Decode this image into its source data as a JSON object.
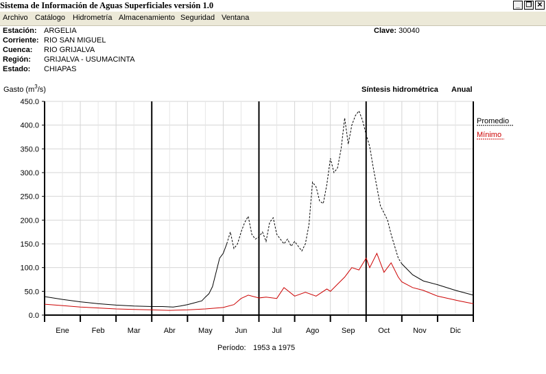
{
  "window": {
    "title": "Sistema de Información de Aguas Superficiales  versión 1.0",
    "buttons": [
      "_",
      "❐",
      "✕"
    ]
  },
  "menu": [
    "Archivo",
    "Catálogo",
    "Hidrometría",
    "Almacenamiento",
    "Seguridad",
    "Ventana"
  ],
  "station": {
    "estacion_label": "Estación:",
    "estacion": "ARGELIA",
    "corriente_label": "Corriente:",
    "corriente": "RIO SAN MIGUEL",
    "cuenca_label": "Cuenca:",
    "cuenca": "RIO GRIJALVA",
    "region_label": "Región:",
    "region": "GRIJALVA - USUMACINTA",
    "estado_label": "Estado:",
    "estado": "CHIAPAS",
    "clave_label": "Clave:",
    "clave": "30040"
  },
  "chart_data": {
    "type": "line",
    "title": "Síntesis hidrométrica",
    "subtitle": "Anual",
    "ylabel_prefix": "Gasto (m",
    "ylabel_sup": "3",
    "ylabel_suffix": "/s)",
    "ylim": [
      0,
      450
    ],
    "yticks": [
      "0.0",
      "50.0",
      "100.0",
      "150.0",
      "200.0",
      "250.0",
      "300.0",
      "350.0",
      "400.0",
      "450.0"
    ],
    "categories": [
      "Ene",
      "Feb",
      "Mar",
      "Abr",
      "May",
      "Jun",
      "Jul",
      "Ago",
      "Sep",
      "Oct",
      "Nov",
      "Dic"
    ],
    "grid": true,
    "legend_position": "right",
    "footer_label": "Período:",
    "footer_value": "1953 a 1975",
    "series": [
      {
        "name": "Promedio",
        "color": "#000000",
        "x": [
          0,
          0.5,
          1,
          1.5,
          2,
          2.5,
          3,
          3.3,
          3.6,
          3.8,
          4,
          4.2,
          4.4,
          4.5,
          4.6,
          4.7,
          4.8,
          4.9,
          5,
          5.1,
          5.2,
          5.3,
          5.4,
          5.5,
          5.6,
          5.7,
          5.8,
          5.9,
          6,
          6.1,
          6.2,
          6.3,
          6.4,
          6.5,
          6.6,
          6.7,
          6.8,
          6.9,
          7,
          7.1,
          7.2,
          7.3,
          7.4,
          7.5,
          7.6,
          7.7,
          7.8,
          7.9,
          8,
          8.1,
          8.2,
          8.3,
          8.4,
          8.5,
          8.6,
          8.7,
          8.8,
          8.9,
          9,
          9.1,
          9.2,
          9.3,
          9.4,
          9.5,
          9.6,
          9.7,
          9.8,
          9.9,
          10,
          10.3,
          10.6,
          11,
          11.5,
          12
        ],
        "values": [
          39,
          33,
          28,
          24,
          21,
          19,
          18,
          18,
          17,
          19,
          22,
          26,
          30,
          38,
          45,
          60,
          90,
          120,
          130,
          150,
          175,
          140,
          150,
          175,
          195,
          208,
          170,
          160,
          165,
          175,
          155,
          195,
          205,
          170,
          160,
          150,
          160,
          145,
          155,
          145,
          135,
          150,
          190,
          280,
          270,
          240,
          235,
          275,
          330,
          300,
          310,
          350,
          415,
          360,
          400,
          420,
          430,
          410,
          380,
          355,
          310,
          270,
          230,
          215,
          200,
          170,
          145,
          120,
          108,
          85,
          72,
          64,
          52,
          42
        ]
      },
      {
        "name": "Mínimo",
        "color": "#cc0000",
        "x": [
          0,
          0.5,
          1,
          1.5,
          2,
          2.5,
          3,
          3.5,
          4,
          4.5,
          5,
          5.3,
          5.5,
          5.7,
          6,
          6.2,
          6.5,
          6.7,
          7,
          7.3,
          7.6,
          7.9,
          8,
          8.2,
          8.4,
          8.6,
          8.8,
          9,
          9.1,
          9.3,
          9.5,
          9.7,
          9.9,
          10,
          10.3,
          10.6,
          11,
          11.3,
          11.6,
          12
        ],
        "values": [
          23,
          20,
          17,
          15,
          13,
          12,
          11,
          10,
          11,
          13,
          16,
          22,
          35,
          42,
          36,
          38,
          35,
          58,
          40,
          48,
          40,
          55,
          50,
          65,
          80,
          100,
          95,
          120,
          100,
          130,
          90,
          110,
          80,
          70,
          58,
          52,
          40,
          35,
          30,
          24
        ]
      }
    ]
  }
}
